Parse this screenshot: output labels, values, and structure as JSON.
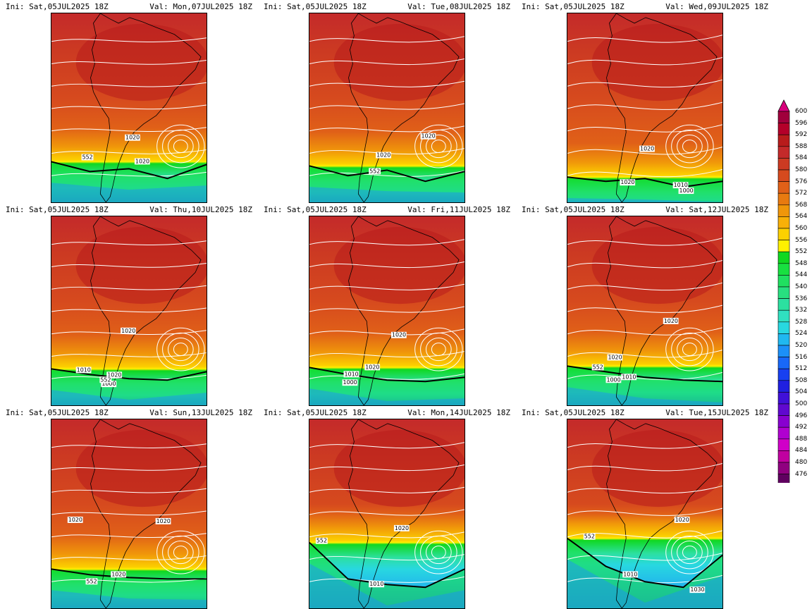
{
  "panels": [
    {
      "ini": "Ini: Sat,05JUL2025 18Z",
      "val": "Val: Mon,07JUL2025 18Z",
      "labels": [
        "1020",
        "1020",
        "552"
      ]
    },
    {
      "ini": "Ini: Sat,05JUL2025 18Z",
      "val": "Val: Tue,08JUL2025 18Z",
      "labels": [
        "1020",
        "1020",
        "552"
      ]
    },
    {
      "ini": "Ini: Sat,05JUL2025 18Z",
      "val": "Val: Wed,09JUL2025 18Z",
      "labels": [
        "1020",
        "1020",
        "1010",
        "1000"
      ]
    },
    {
      "ini": "Ini: Sat,05JUL2025 18Z",
      "val": "Val: Thu,10JUL2025 18Z",
      "labels": [
        "1020",
        "1010",
        "1020",
        "1000",
        "552"
      ]
    },
    {
      "ini": "Ini: Sat,05JUL2025 18Z",
      "val": "Val: Fri,11JUL2025 18Z",
      "labels": [
        "1020",
        "1020",
        "1010",
        "1000"
      ]
    },
    {
      "ini": "Ini: Sat,05JUL2025 18Z",
      "val": "Val: Sat,12JUL2025 18Z",
      "labels": [
        "1020",
        "1020",
        "552",
        "1000",
        "1010"
      ]
    },
    {
      "ini": "Ini: Sat,05JUL2025 18Z",
      "val": "Val: Sun,13JUL2025 18Z",
      "labels": [
        "1020",
        "1020",
        "1020",
        "552"
      ]
    },
    {
      "ini": "Ini: Sat,05JUL2025 18Z",
      "val": "Val: Mon,14JUL2025 18Z",
      "labels": [
        "552",
        "1020",
        "1010"
      ]
    },
    {
      "ini": "Ini: Sat,05JUL2025 18Z",
      "val": "Val: Tue,15JUL2025 18Z",
      "labels": [
        "552",
        "1020",
        "1010",
        "1030"
      ]
    }
  ],
  "colorbar": {
    "levels": [
      "600",
      "596",
      "592",
      "588",
      "584",
      "580",
      "576",
      "572",
      "568",
      "564",
      "560",
      "556",
      "552",
      "548",
      "544",
      "540",
      "536",
      "532",
      "528",
      "524",
      "520",
      "516",
      "512",
      "508",
      "504",
      "500",
      "496",
      "492",
      "488",
      "484",
      "480",
      "476"
    ],
    "colors": [
      "#a0003c",
      "#b4002a",
      "#b81c1c",
      "#c42a2a",
      "#cc3a22",
      "#d64a1e",
      "#e06018",
      "#e87a10",
      "#f0960a",
      "#f8b008",
      "#fcd000",
      "#fff000",
      "#10d820",
      "#18e040",
      "#20e060",
      "#28e080",
      "#2ce0a0",
      "#30e0c0",
      "#28d8e0",
      "#20b8f0",
      "#1c90f8",
      "#1868f8",
      "#1840f0",
      "#2020e0",
      "#4010d8",
      "#6008d0",
      "#8800d0",
      "#b000d0",
      "#d000c8",
      "#c000a0",
      "#900080",
      "#600060"
    ],
    "top_arrow_color": "#d8007c",
    "bottom_arrow_color": "#400040"
  }
}
